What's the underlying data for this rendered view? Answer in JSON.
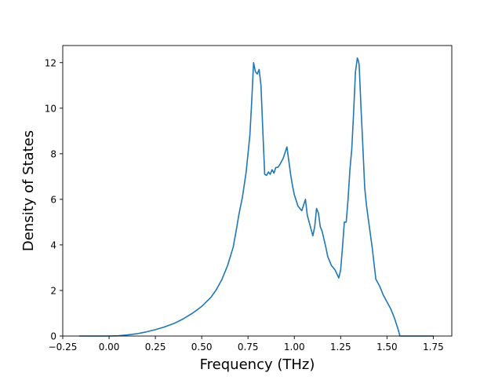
{
  "chart_data": {
    "type": "line",
    "title": "",
    "xlabel": "Frequency (THz)",
    "ylabel": "Density of States",
    "xlim": [
      -0.25,
      1.85
    ],
    "ylim": [
      0,
      12.75
    ],
    "x_ticks": [
      -0.25,
      0.0,
      0.25,
      0.5,
      0.75,
      1.0,
      1.25,
      1.5,
      1.75
    ],
    "x_tick_labels": [
      "−0.25",
      "0.00",
      "0.25",
      "0.50",
      "0.75",
      "1.00",
      "1.25",
      "1.50",
      "1.75"
    ],
    "y_ticks": [
      0,
      2,
      4,
      6,
      8,
      10,
      12
    ],
    "y_tick_labels": [
      "0",
      "2",
      "4",
      "6",
      "8",
      "10",
      "12"
    ],
    "grid": false,
    "legend": "none",
    "line_color": "#1f77b4",
    "series": [
      {
        "x": [
          -0.16,
          -0.1,
          0.0,
          0.05,
          0.1,
          0.15,
          0.2,
          0.25,
          0.3,
          0.35,
          0.4,
          0.45,
          0.5,
          0.55,
          0.58,
          0.61,
          0.64,
          0.67,
          0.69,
          0.7,
          0.72,
          0.74,
          0.76,
          0.77,
          0.78,
          0.79,
          0.8,
          0.81,
          0.82,
          0.83,
          0.84,
          0.85,
          0.86,
          0.87,
          0.88,
          0.89,
          0.9,
          0.91,
          0.92,
          0.94,
          0.96,
          0.98,
          0.99,
          1.0,
          1.02,
          1.04,
          1.06,
          1.07,
          1.08,
          1.1,
          1.11,
          1.12,
          1.13,
          1.14,
          1.15,
          1.17,
          1.18,
          1.2,
          1.22,
          1.24,
          1.25,
          1.26,
          1.27,
          1.28,
          1.29,
          1.3,
          1.31,
          1.32,
          1.33,
          1.34,
          1.345,
          1.35,
          1.36,
          1.37,
          1.38,
          1.39,
          1.4,
          1.42,
          1.44,
          1.46,
          1.47,
          1.48,
          1.5,
          1.52,
          1.54,
          1.56,
          1.57,
          1.58,
          1.59,
          1.6,
          1.65,
          1.7,
          1.75
        ],
        "y": [
          0.0,
          0.0,
          0.0,
          0.01,
          0.05,
          0.1,
          0.18,
          0.28,
          0.4,
          0.55,
          0.75,
          1.0,
          1.3,
          1.7,
          2.05,
          2.5,
          3.1,
          3.9,
          4.8,
          5.3,
          6.1,
          7.2,
          8.8,
          10.3,
          12.0,
          11.6,
          11.5,
          11.7,
          11.0,
          9.0,
          7.1,
          7.05,
          7.2,
          7.1,
          7.3,
          7.15,
          7.4,
          7.4,
          7.5,
          7.8,
          8.3,
          7.1,
          6.6,
          6.2,
          5.7,
          5.5,
          6.0,
          5.3,
          5.0,
          4.4,
          4.8,
          5.6,
          5.4,
          4.8,
          4.6,
          3.9,
          3.5,
          3.1,
          2.9,
          2.55,
          2.9,
          3.9,
          5.0,
          5.0,
          6.0,
          7.3,
          8.2,
          9.8,
          11.6,
          12.2,
          12.1,
          11.9,
          10.0,
          8.3,
          6.5,
          5.7,
          5.1,
          3.9,
          2.5,
          2.2,
          2.0,
          1.8,
          1.5,
          1.2,
          0.8,
          0.3,
          0.0,
          0.0,
          0.0,
          0.0,
          0.0,
          0.0,
          0.0
        ]
      }
    ]
  }
}
